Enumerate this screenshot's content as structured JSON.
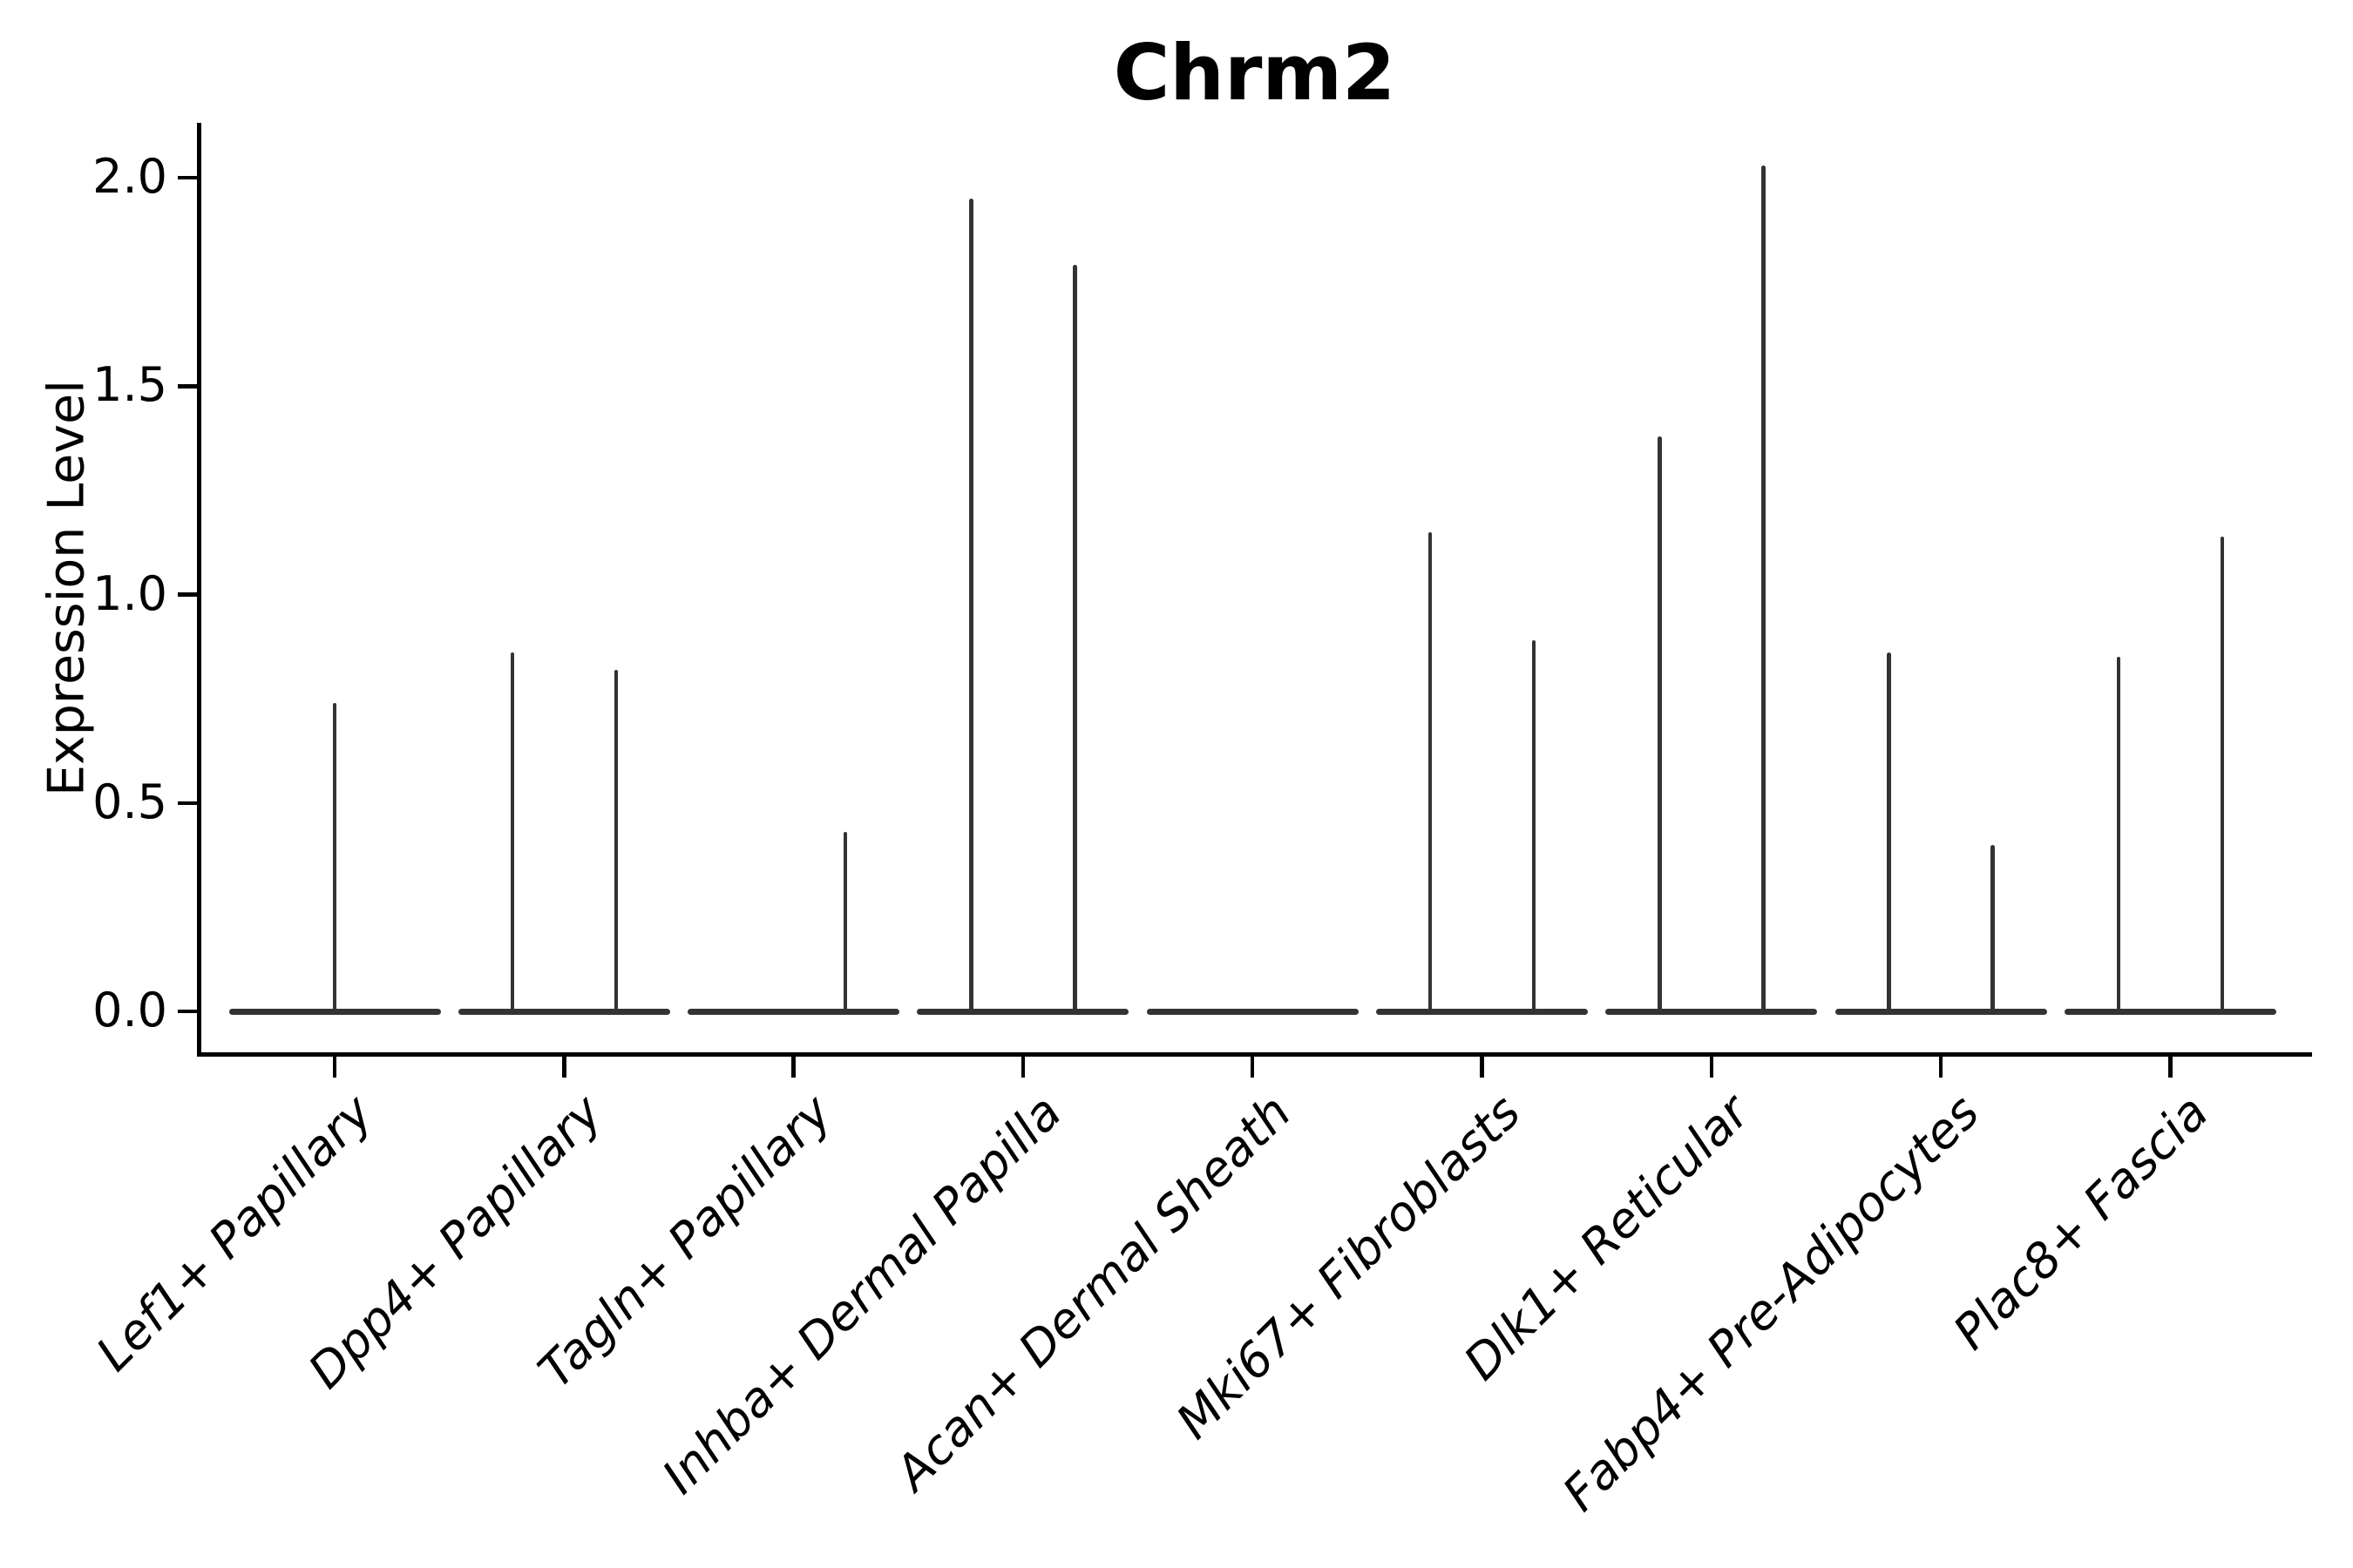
{
  "figure": {
    "title": "Chrm2",
    "background_color": "#ffffff",
    "axis_color": "#000000",
    "violin_color": "#333333"
  },
  "chart_data": {
    "type": "violin",
    "title": "Chrm2",
    "xlabel": "",
    "ylabel": "Expression Level",
    "ylim": [
      -0.09,
      2.13
    ],
    "yticks": [
      0.0,
      0.5,
      1.0,
      1.5,
      2.0
    ],
    "ytick_labels": [
      "0.0",
      "0.5",
      "1.0",
      "1.5",
      "2.0"
    ],
    "grid": false,
    "legend": "none",
    "categories": [
      "Lef1+ Papillary",
      "Dpp4+ Papillary",
      "Tagln+ Papillary",
      "Inhba+ Dermal Papilla",
      "Acan+ Dermal Sheath",
      "Mki67+ Fibroblasts",
      "Dlk1+ Reticular",
      "Fabp4+ Pre-Adipocytes",
      "Plac8+ Fascia"
    ],
    "violins": [
      {
        "category": "Lef1+ Papillary",
        "baseline_value": 0.0,
        "spikes": [
          {
            "offset_frac": 0.0,
            "max": 0.74
          }
        ]
      },
      {
        "category": "Dpp4+ Papillary",
        "baseline_value": 0.0,
        "spikes": [
          {
            "offset_frac": -0.226,
            "max": 0.86
          },
          {
            "offset_frac": 0.226,
            "max": 0.82
          }
        ]
      },
      {
        "category": "Tagln+ Papillary",
        "baseline_value": 0.0,
        "spikes": [
          {
            "offset_frac": 0.226,
            "max": 0.43
          }
        ]
      },
      {
        "category": "Inhba+ Dermal Papilla",
        "baseline_value": 0.0,
        "spikes": [
          {
            "offset_frac": -0.226,
            "max": 1.95
          },
          {
            "offset_frac": 0.226,
            "max": 1.79
          }
        ]
      },
      {
        "category": "Acan+ Dermal Sheath",
        "baseline_value": 0.0,
        "spikes": []
      },
      {
        "category": "Mki67+ Fibroblasts",
        "baseline_value": 0.0,
        "spikes": [
          {
            "offset_frac": -0.226,
            "max": 1.15
          },
          {
            "offset_frac": 0.226,
            "max": 0.89
          }
        ]
      },
      {
        "category": "Dlk1+ Reticular",
        "baseline_value": 0.0,
        "spikes": [
          {
            "offset_frac": -0.226,
            "max": 1.38
          },
          {
            "offset_frac": 0.226,
            "max": 2.03
          }
        ]
      },
      {
        "category": "Fabp4+ Pre-Adipocytes",
        "baseline_value": 0.0,
        "spikes": [
          {
            "offset_frac": -0.226,
            "max": 0.86
          },
          {
            "offset_frac": 0.226,
            "max": 0.4
          }
        ]
      },
      {
        "category": "Plac8+ Fascia",
        "baseline_value": 0.0,
        "spikes": [
          {
            "offset_frac": -0.226,
            "max": 0.85
          },
          {
            "offset_frac": 0.226,
            "max": 1.14
          }
        ]
      }
    ]
  }
}
